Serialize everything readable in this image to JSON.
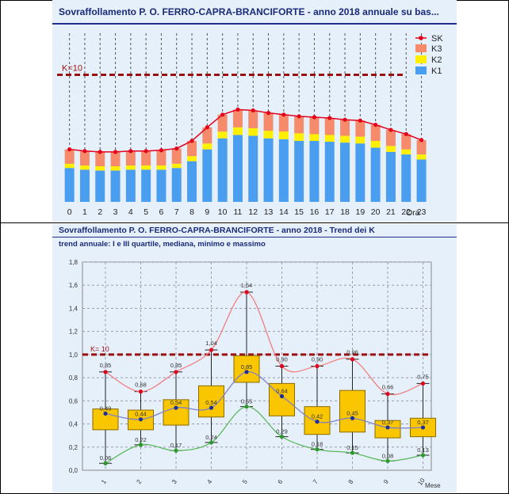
{
  "chart_data": [
    {
      "type": "bar",
      "title": "Sovraffollamento P. O. FERRO-CAPRA-BRANCIFORTE - anno 2018 annuale su bas...",
      "xlabel": "Ora",
      "categories": [
        "0",
        "1",
        "2",
        "3",
        "4",
        "5",
        "6",
        "7",
        "8",
        "9",
        "10",
        "11",
        "12",
        "13",
        "14",
        "15",
        "16",
        "17",
        "18",
        "19",
        "20",
        "21",
        "22",
        "23"
      ],
      "stacked": true,
      "series": [
        {
          "name": "K1",
          "color": "#4a9ef0",
          "values": [
            0.4,
            0.38,
            0.37,
            0.37,
            0.38,
            0.38,
            0.38,
            0.4,
            0.48,
            0.62,
            0.75,
            0.79,
            0.78,
            0.75,
            0.74,
            0.72,
            0.72,
            0.71,
            0.7,
            0.69,
            0.64,
            0.59,
            0.56,
            0.5
          ]
        },
        {
          "name": "K2",
          "color": "#ffef00",
          "values": [
            0.05,
            0.05,
            0.05,
            0.05,
            0.05,
            0.05,
            0.05,
            0.05,
            0.06,
            0.07,
            0.08,
            0.09,
            0.09,
            0.09,
            0.09,
            0.09,
            0.08,
            0.08,
            0.08,
            0.08,
            0.08,
            0.07,
            0.06,
            0.06
          ]
        },
        {
          "name": "K3",
          "color": "#f58b6a",
          "values": [
            0.17,
            0.17,
            0.17,
            0.17,
            0.17,
            0.17,
            0.18,
            0.18,
            0.18,
            0.19,
            0.2,
            0.21,
            0.21,
            0.21,
            0.2,
            0.2,
            0.2,
            0.2,
            0.19,
            0.19,
            0.19,
            0.19,
            0.18,
            0.17
          ]
        }
      ],
      "line": {
        "name": "SK",
        "color": "#e3001b",
        "values": [
          0.62,
          0.6,
          0.59,
          0.59,
          0.6,
          0.6,
          0.61,
          0.63,
          0.72,
          0.88,
          1.03,
          1.09,
          1.08,
          1.05,
          1.03,
          1.01,
          1.0,
          0.99,
          0.97,
          0.96,
          0.91,
          0.85,
          0.8,
          0.73
        ]
      },
      "threshold": {
        "label": "K=10",
        "value": 1.5,
        "color": "#9a1010"
      },
      "ylim": [
        0,
        2.0
      ],
      "grid": "vertical",
      "legend": "top-right"
    },
    {
      "type": "box",
      "title": "Sovraffollamento P. O. FERRO-CAPRA-BRANCIFORTE - anno 2018 - Trend dei K",
      "subtitle": "trend annuale: I e III quartile, mediana, minimo e massimo",
      "xlabel": "Mese",
      "categories": [
        "1",
        "2",
        "3",
        "4",
        "5",
        "6",
        "7",
        "8",
        "9",
        "10"
      ],
      "yticks": [
        "0,0",
        "0,2",
        "0,4",
        "0,6",
        "0,8",
        "1,0",
        "1,2",
        "1,4",
        "1,6",
        "1,8"
      ],
      "ylim": [
        0,
        1.8
      ],
      "threshold": {
        "label": "K= 10",
        "value": 1.0,
        "color": "#9a1010"
      },
      "boxes": [
        {
          "min": 0.06,
          "q1": 0.35,
          "median": 0.49,
          "q3": 0.53,
          "max": 0.85
        },
        {
          "min": 0.22,
          "q1": 0.35,
          "median": 0.44,
          "q3": 0.52,
          "max": 0.68
        },
        {
          "min": 0.17,
          "q1": 0.39,
          "median": 0.54,
          "q3": 0.61,
          "max": 0.85
        },
        {
          "min": 0.24,
          "q1": 0.46,
          "median": 0.54,
          "q3": 0.73,
          "max": 1.04
        },
        {
          "min": 0.55,
          "q1": 0.76,
          "median": 0.85,
          "q3": 0.99,
          "max": 1.54
        },
        {
          "min": 0.29,
          "q1": 0.47,
          "median": 0.64,
          "q3": 0.75,
          "max": 0.9
        },
        {
          "min": 0.18,
          "q1": 0.31,
          "median": 0.42,
          "q3": 0.55,
          "max": 0.9
        },
        {
          "min": 0.15,
          "q1": 0.33,
          "median": 0.45,
          "q3": 0.69,
          "max": 0.96
        },
        {
          "min": 0.08,
          "q1": 0.28,
          "median": 0.37,
          "q3": 0.43,
          "max": 0.66
        },
        {
          "min": 0.13,
          "q1": 0.29,
          "median": 0.37,
          "q3": 0.45,
          "max": 0.75
        }
      ],
      "value_labels": {
        "max": [
          "0,85",
          "0,68",
          "0,85",
          "1,04",
          "1,54",
          "0,90",
          "0,90",
          "0,96",
          "0,66",
          "0,75"
        ],
        "median": [
          "0,49",
          "0,44",
          "0,54",
          "0,54",
          "0,85",
          "0,64",
          "0,42",
          "0,45",
          "0,37",
          "0,37"
        ],
        "min": [
          "0,06",
          "0,22",
          "0,17",
          "0,24",
          "0,55",
          "0,29",
          "0,18",
          "0,15",
          "0,08",
          "0,13"
        ]
      },
      "colors": {
        "box": "#f9c600",
        "median": "#1f2f9a",
        "max_line": "#f08080",
        "min_line": "#5cb85c",
        "median_line": "#8080c8"
      },
      "grid": true
    }
  ]
}
